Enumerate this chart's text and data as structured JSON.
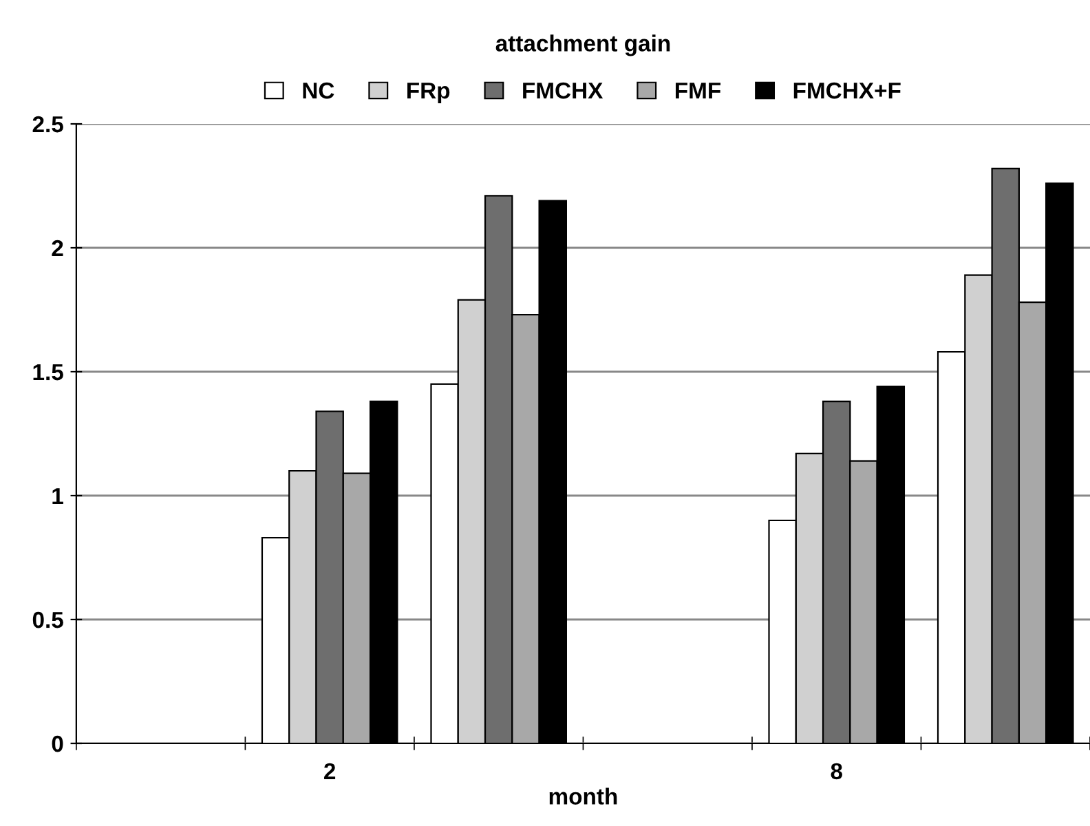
{
  "chart_data": {
    "type": "bar",
    "title": "attachment gain",
    "xlabel": "month",
    "categories": [
      null,
      "2",
      null,
      null,
      "8",
      null
    ],
    "series": [
      {
        "name": "NC",
        "color": "#ffffff",
        "values": [
          null,
          0.83,
          1.45,
          null,
          0.9,
          1.58
        ]
      },
      {
        "name": "FRp",
        "color": "#d0d0d0",
        "values": [
          null,
          1.1,
          1.79,
          null,
          1.17,
          1.89
        ]
      },
      {
        "name": "FMCHX",
        "color": "#6e6e6e",
        "values": [
          null,
          1.34,
          2.21,
          null,
          1.38,
          2.32
        ]
      },
      {
        "name": "FMF",
        "color": "#a8a8a8",
        "values": [
          null,
          1.09,
          1.73,
          null,
          1.14,
          1.78
        ]
      },
      {
        "name": "FMCHX+F",
        "color": "#000000",
        "values": [
          null,
          1.38,
          2.19,
          null,
          1.44,
          2.26
        ]
      }
    ],
    "ylim": [
      0,
      2.5
    ],
    "yticks": [
      0,
      0.5,
      1,
      1.5,
      2,
      2.5
    ],
    "grid": "y",
    "legend": "top"
  }
}
